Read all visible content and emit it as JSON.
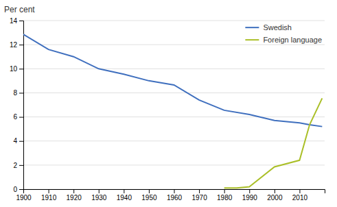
{
  "chart_data": {
    "type": "line",
    "ylabel": "Per cent",
    "series": [
      {
        "name": "Swedish",
        "color": "#3f6fbe",
        "x": [
          1900,
          1910,
          1920,
          1930,
          1940,
          1950,
          1960,
          1970,
          1980,
          1990,
          2000,
          2010,
          2014,
          2019
        ],
        "values": [
          12.85,
          11.6,
          11.0,
          10.0,
          9.55,
          9.0,
          8.65,
          7.4,
          6.55,
          6.2,
          5.7,
          5.5,
          5.35,
          5.2
        ]
      },
      {
        "name": "Foreign language",
        "color": "#aabf27",
        "x": [
          1980,
          1985,
          1990,
          2000,
          2010,
          2014,
          2019
        ],
        "values": [
          0.1,
          0.1,
          0.2,
          1.85,
          2.4,
          5.35,
          7.55
        ]
      }
    ],
    "xlim": [
      1900,
      2020
    ],
    "xticks": [
      1900,
      1910,
      1920,
      1930,
      1940,
      1950,
      1960,
      1970,
      1980,
      1990,
      2000,
      2010
    ],
    "ylim": [
      0,
      14
    ],
    "yticks": [
      0,
      2,
      4,
      6,
      8,
      10,
      12,
      14
    ],
    "grid": true,
    "legend": "upper right"
  }
}
